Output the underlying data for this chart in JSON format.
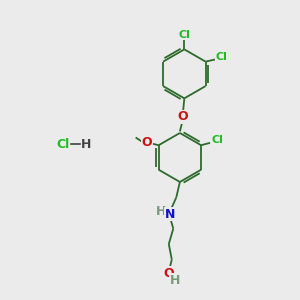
{
  "background_color": "#ebebeb",
  "bond_color": "#2d6b2d",
  "bond_width": 1.3,
  "atom_colors": {
    "Cl": "#22bb22",
    "O": "#cc1111",
    "N": "#1111cc",
    "H": "#7a9a7a",
    "C": "#2d6b2d"
  },
  "figsize": [
    3.0,
    3.0
  ],
  "dpi": 100
}
